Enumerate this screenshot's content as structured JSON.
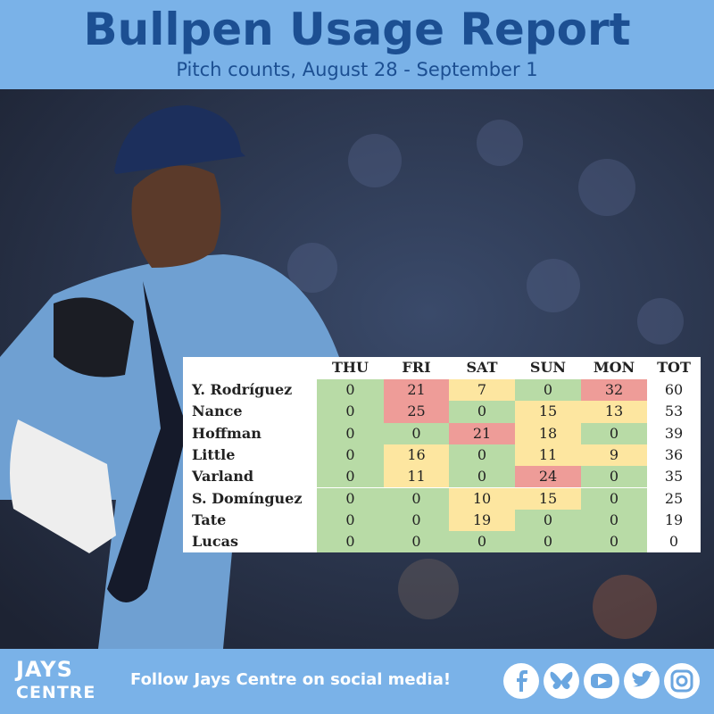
{
  "header": {
    "title": "Bullpen Usage Report",
    "subtitle": "Pitch counts, August 28 - September 1"
  },
  "table": {
    "columns": [
      "THU",
      "FRI",
      "SAT",
      "SUN",
      "MON",
      "TOT"
    ],
    "rows": [
      {
        "name": "Y. Rodríguez",
        "values": [
          0,
          21,
          7,
          0,
          32
        ],
        "colors": [
          "#b8dba6",
          "#ee9c98",
          "#fde6a0",
          "#b8dba6",
          "#ee9c98"
        ],
        "total": 60
      },
      {
        "name": "Nance",
        "values": [
          0,
          25,
          0,
          15,
          13
        ],
        "colors": [
          "#b8dba6",
          "#ee9c98",
          "#b8dba6",
          "#fde6a0",
          "#fde6a0"
        ],
        "total": 53
      },
      {
        "name": "Hoffman",
        "values": [
          0,
          0,
          21,
          18,
          0
        ],
        "colors": [
          "#b8dba6",
          "#b8dba6",
          "#ee9c98",
          "#fde6a0",
          "#b8dba6"
        ],
        "total": 39
      },
      {
        "name": "Little",
        "values": [
          0,
          16,
          0,
          11,
          9
        ],
        "colors": [
          "#b8dba6",
          "#fde6a0",
          "#b8dba6",
          "#fde6a0",
          "#fde6a0"
        ],
        "total": 36
      },
      {
        "name": "Varland",
        "values": [
          0,
          11,
          0,
          24,
          0
        ],
        "colors": [
          "#b8dba6",
          "#fde6a0",
          "#b8dba6",
          "#ee9c98",
          "#b8dba6"
        ],
        "total": 35
      },
      {
        "name": "S. Domínguez",
        "values": [
          0,
          0,
          10,
          15,
          0
        ],
        "colors": [
          "#b8dba6",
          "#b8dba6",
          "#fde6a0",
          "#fde6a0",
          "#b8dba6"
        ],
        "total": 25
      },
      {
        "name": "Tate",
        "values": [
          0,
          0,
          19,
          0,
          0
        ],
        "colors": [
          "#b8dba6",
          "#b8dba6",
          "#fde6a0",
          "#b8dba6",
          "#b8dba6"
        ],
        "total": 19
      },
      {
        "name": "Lucas",
        "values": [
          0,
          0,
          0,
          0,
          0
        ],
        "colors": [
          "#b8dba6",
          "#b8dba6",
          "#b8dba6",
          "#b8dba6",
          "#b8dba6"
        ],
        "total": 0
      }
    ]
  },
  "footer": {
    "logo_top": "JAYS",
    "logo_bottom": "CENTRE",
    "message": "Follow Jays Centre on social media!"
  }
}
